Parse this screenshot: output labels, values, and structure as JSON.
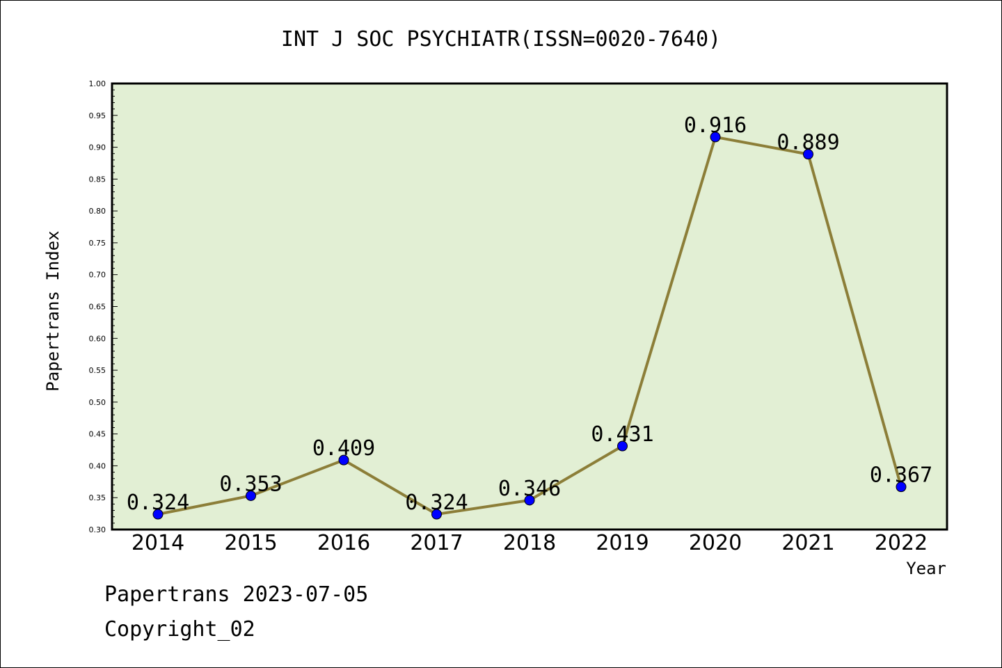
{
  "footer": {
    "line1": "Papertrans 2023-07-05",
    "line2": "Copyright_02"
  },
  "colors": {
    "plot_background": "#e2efd4",
    "line": "#8c7e38",
    "marker": "#0000ff",
    "axis": "#000000"
  },
  "chart_data": {
    "type": "line",
    "title": "INT J SOC PSYCHIATR(ISSN=0020-7640)",
    "xlabel": "Year",
    "ylabel": "Papertrans Index",
    "categories": [
      "2014",
      "2015",
      "2016",
      "2017",
      "2018",
      "2019",
      "2020",
      "2021",
      "2022"
    ],
    "values": [
      0.324,
      0.353,
      0.409,
      0.324,
      0.346,
      0.431,
      0.916,
      0.889,
      0.367
    ],
    "data_labels": [
      "0.324",
      "0.353",
      "0.409",
      "0.324",
      "0.346",
      "0.431",
      "0.916",
      "0.889",
      "0.367"
    ],
    "ylim": [
      0.3,
      1.0
    ],
    "yticks": [
      "0.30",
      "0.35",
      "0.40",
      "0.45",
      "0.50",
      "0.55",
      "0.60",
      "0.65",
      "0.70",
      "0.75",
      "0.80",
      "0.85",
      "0.90",
      "0.95",
      "1.00"
    ],
    "grid": false,
    "legend": "none"
  }
}
